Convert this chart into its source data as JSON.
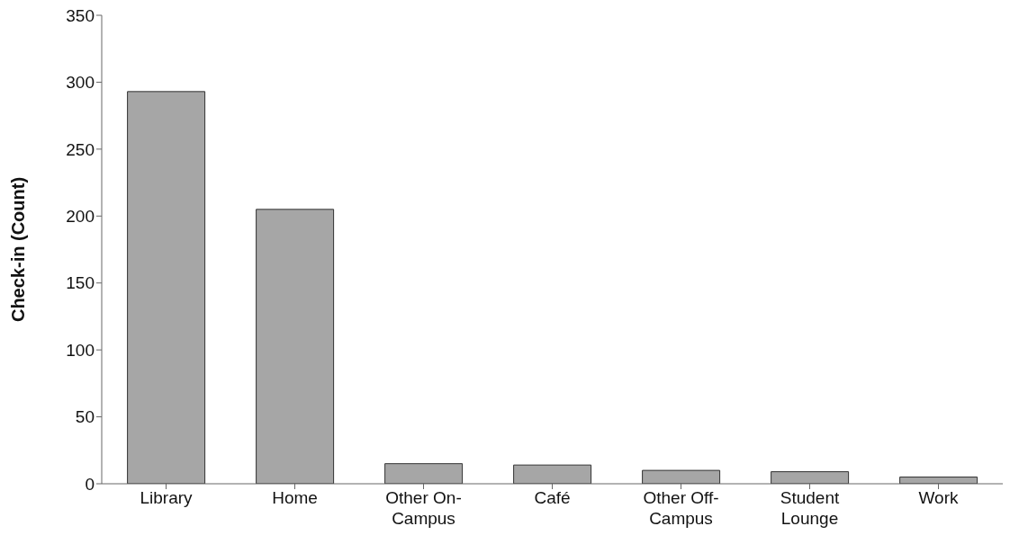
{
  "chart_data": {
    "type": "bar",
    "ylabel": "Check-in (Count)",
    "categories": [
      "Library",
      "Home",
      "Other On-Campus",
      "Café",
      "Other Off-Campus",
      "Student Lounge",
      "Work"
    ],
    "values": [
      293,
      205,
      15,
      14,
      10,
      9,
      5
    ],
    "color": "#a6a6a6",
    "ylim": [
      0,
      350
    ],
    "yticks": [
      0,
      50,
      100,
      150,
      200,
      250,
      300,
      350
    ],
    "grid": false,
    "legend": false
  }
}
